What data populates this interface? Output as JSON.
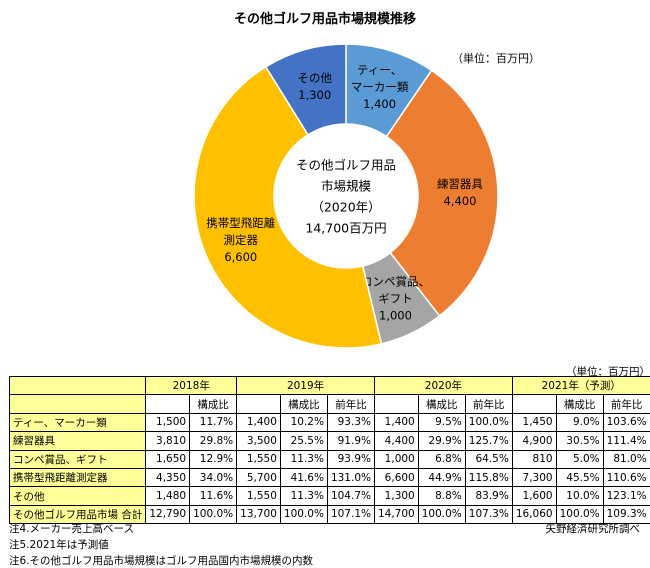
{
  "page_title": "その他ゴルフ用品市場規模推移",
  "chart_data": {
    "type": "pie",
    "title": "その他ゴルフ用品市場規模推移",
    "unit": "（単位：百万円）",
    "center_label": [
      "その他ゴルフ用品",
      "市場規模",
      "（2020年）",
      "14,700百万円"
    ],
    "slices": [
      {
        "label": [
          "ティー、",
          "マーカー類"
        ],
        "value": 1400,
        "value_label": "1,400",
        "color": "#5b9bd5"
      },
      {
        "label": [
          "練習器具"
        ],
        "value": 4400,
        "value_label": "4,400",
        "color": "#ed7d31"
      },
      {
        "label": [
          "コンペ賞品、",
          "ギフト"
        ],
        "value": 1000,
        "value_label": "1,000",
        "color": "#a5a5a5"
      },
      {
        "label": [
          "携帯型飛距離",
          "測定器"
        ],
        "value": 6600,
        "value_label": "6,600",
        "color": "#ffc000"
      },
      {
        "label": [
          "その他"
        ],
        "value": 1300,
        "value_label": "1,300",
        "color": "#4472c4"
      }
    ]
  },
  "table": {
    "unit": "（単位：百万円）",
    "years": [
      "2018年",
      "2019年",
      "2020年",
      "2021年（予測）"
    ],
    "sub_headers": {
      "composition": "構成比",
      "yoy": "前年比"
    },
    "rows": [
      {
        "label": "ティー、マーカー類",
        "cells": [
          "1,500",
          "11.7%",
          "1,400",
          "10.2%",
          "93.3%",
          "1,400",
          "9.5%",
          "100.0%",
          "1,450",
          "9.0%",
          "103.6%"
        ]
      },
      {
        "label": "練習器具",
        "cells": [
          "3,810",
          "29.8%",
          "3,500",
          "25.5%",
          "91.9%",
          "4,400",
          "29.9%",
          "125.7%",
          "4,900",
          "30.5%",
          "111.4%"
        ]
      },
      {
        "label": "コンペ賞品、ギフト",
        "cells": [
          "1,650",
          "12.9%",
          "1,550",
          "11.3%",
          "93.9%",
          "1,000",
          "6.8%",
          "64.5%",
          "810",
          "5.0%",
          "81.0%"
        ]
      },
      {
        "label": "携帯型飛距離測定器",
        "cells": [
          "4,350",
          "34.0%",
          "5,700",
          "41.6%",
          "131.0%",
          "6,600",
          "44.9%",
          "115.8%",
          "7,300",
          "45.5%",
          "110.6%"
        ]
      },
      {
        "label": "その他",
        "cells": [
          "1,480",
          "11.6%",
          "1,550",
          "11.3%",
          "104.7%",
          "1,300",
          "8.8%",
          "83.9%",
          "1,600",
          "10.0%",
          "123.1%"
        ]
      },
      {
        "label": "その他ゴルフ用品市場 合計",
        "cells": [
          "12,790",
          "100.0%",
          "13,700",
          "100.0%",
          "107.1%",
          "14,700",
          "100.0%",
          "107.3%",
          "16,060",
          "100.0%",
          "109.3%"
        ]
      }
    ]
  },
  "notes": [
    "注4.メーカー売上高ベース",
    "注5.2021年は予測値",
    "注6.その他ゴルフ用品市場規模はゴルフ用品国内市場規模の内数"
  ],
  "credit": "矢野経済研究所調べ"
}
